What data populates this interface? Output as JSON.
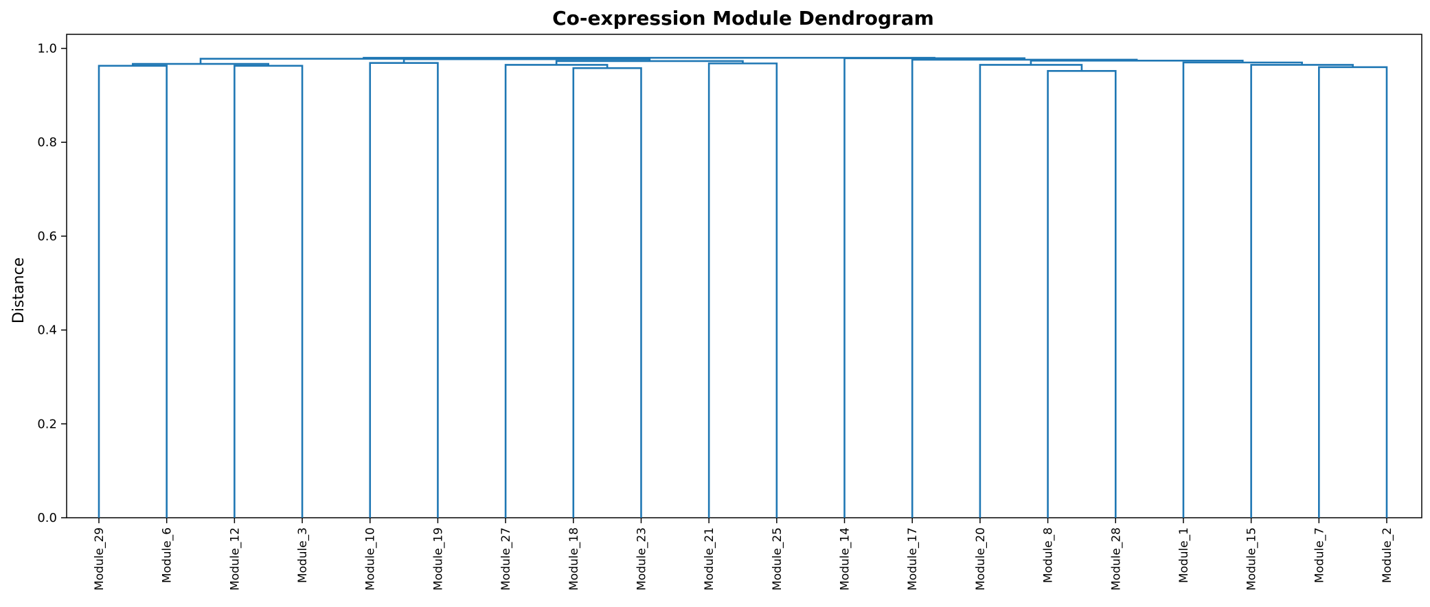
{
  "chart_data": {
    "type": "dendrogram",
    "title": "Co-expression Module Dendrogram",
    "xlabel": "",
    "ylabel": "Distance",
    "ylim": [
      0,
      1.03
    ],
    "yticks": [
      0.0,
      0.2,
      0.4,
      0.6,
      0.8,
      1.0
    ],
    "ytick_labels": [
      "0.0",
      "0.2",
      "0.4",
      "0.6",
      "0.8",
      "1.0"
    ],
    "grid": false,
    "color": "#1f77b4",
    "leaves": [
      "Module_29",
      "Module_6",
      "Module_12",
      "Module_3",
      "Module_10",
      "Module_19",
      "Module_27",
      "Module_18",
      "Module_23",
      "Module_21",
      "Module_25",
      "Module_14",
      "Module_17",
      "Module_20",
      "Module_8",
      "Module_28",
      "Module_1",
      "Module_15",
      "Module_7",
      "Module_2"
    ],
    "merges": [
      {
        "left": "Module_29",
        "right": "Module_6",
        "height": 0.963
      },
      {
        "left": "Module_12",
        "right": "Module_3",
        "height": 0.963
      },
      {
        "left": 0,
        "right": 1,
        "height": 0.967
      },
      {
        "left": "Module_10",
        "right": "Module_19",
        "height": 0.969
      },
      {
        "left": "Module_18",
        "right": "Module_23",
        "height": 0.958
      },
      {
        "left": "Module_27",
        "right": 4,
        "height": 0.965
      },
      {
        "left": "Module_21",
        "right": "Module_25",
        "height": 0.968
      },
      {
        "left": 5,
        "right": 6,
        "height": 0.973
      },
      {
        "left": 3,
        "right": 7,
        "height": 0.977
      },
      {
        "left": 2,
        "right": 8,
        "height": 0.978
      },
      {
        "left": "Module_8",
        "right": "Module_28",
        "height": 0.952
      },
      {
        "left": "Module_20",
        "right": 10,
        "height": 0.965
      },
      {
        "left": "Module_7",
        "right": "Module_2",
        "height": 0.96
      },
      {
        "left": "Module_15",
        "right": 12,
        "height": 0.965
      },
      {
        "left": "Module_1",
        "right": 13,
        "height": 0.97
      },
      {
        "left": 11,
        "right": 14,
        "height": 0.974
      },
      {
        "left": "Module_17",
        "right": 15,
        "height": 0.976
      },
      {
        "left": "Module_14",
        "right": 16,
        "height": 0.979
      },
      {
        "left": 9,
        "right": 17,
        "height": 0.98
      }
    ]
  }
}
